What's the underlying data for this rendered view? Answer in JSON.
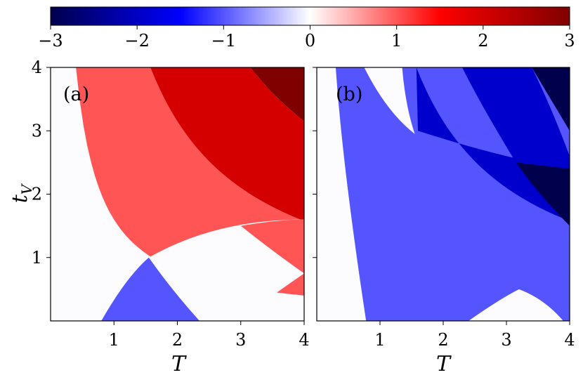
{
  "chart_data": [
    {
      "type": "heatmap",
      "panel_label": "(a)",
      "xlabel": "T",
      "ylabel": "t",
      "ylabel_subscript": "V",
      "xlim": [
        0,
        4
      ],
      "ylim": [
        0,
        4
      ],
      "xticks": [
        "1",
        "2",
        "3",
        "4"
      ],
      "yticks": [
        "1",
        "2",
        "3",
        "4"
      ],
      "colormap": "seismic",
      "color_range": [
        -3,
        3
      ],
      "regions": [
        {
          "value": 1,
          "description": "between curve T·t_V=1.6 and T·t_V=6.3, above lower arc"
        },
        {
          "value": 2,
          "description": "between curve T·t_V=6.3 and T·t_V=12.6"
        },
        {
          "value": 3,
          "description": "beyond curve T·t_V=12.6 near top right"
        },
        {
          "value": -1,
          "description": "bottom lens near T≈1.5, t_V<1"
        }
      ]
    },
    {
      "type": "heatmap",
      "panel_label": "(b)",
      "xlabel": "T",
      "xlim": [
        0,
        4
      ],
      "ylim": [
        0,
        4
      ],
      "xticks": [
        "1",
        "2",
        "3",
        "4"
      ],
      "colormap": "seismic",
      "color_range": [
        -3,
        3
      ],
      "regions": [
        {
          "value": -1,
          "description": "outer band"
        },
        {
          "value": -2,
          "description": "middle band"
        },
        {
          "value": -3,
          "description": "top right corner"
        }
      ]
    }
  ],
  "colorbar": {
    "ticks": [
      "−3",
      "−2",
      "−1",
      "0",
      "1",
      "2",
      "3"
    ],
    "tick_values": [
      -3,
      -2,
      -1,
      0,
      1,
      2,
      3
    ]
  },
  "colors": {
    "v_m3": "#00004d",
    "v_m2": "#0000cc",
    "v_m1": "#5555ff",
    "v_0": "#fcfcff",
    "v_1": "#ff5555",
    "v_2": "#d40000",
    "v_3": "#800000"
  }
}
